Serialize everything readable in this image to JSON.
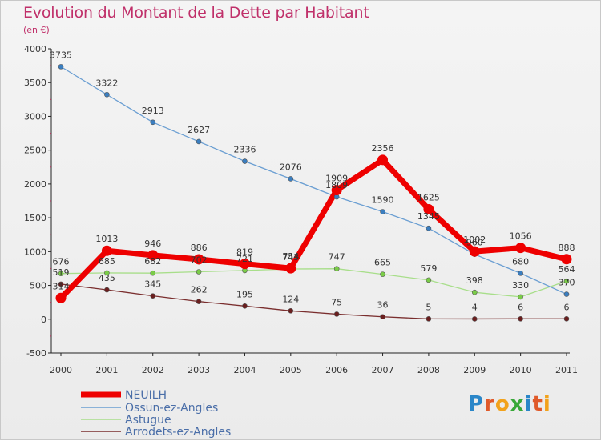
{
  "header": {
    "title": "Evolution du Montant de la Dette par Habitant",
    "unit": "(en €)"
  },
  "logo": {
    "text": "Proxiti",
    "letter_colors": [
      "#2a86c8",
      "#e05a2a",
      "#f2a21b",
      "#38a838",
      "#2a86c8",
      "#e05a2a",
      "#f2a21b"
    ]
  },
  "chart_data": {
    "type": "line",
    "title": "Evolution du Montant de la Dette par Habitant",
    "ylabel": "(en €)",
    "xlabel": "",
    "x": [
      "2000",
      "2001",
      "2002",
      "2003",
      "2004",
      "2005",
      "2006",
      "2007",
      "2008",
      "2009",
      "2010",
      "2011"
    ],
    "ylim": [
      -500,
      4000
    ],
    "yticks": [
      -500,
      0,
      500,
      1000,
      1500,
      2000,
      2500,
      3000,
      3500,
      4000
    ],
    "grid": false,
    "legend_position": "bottom-left",
    "series": [
      {
        "name": "NEUILH",
        "color": "#ee0000",
        "point_color": "#ee0000",
        "emphasis": true,
        "values": [
          314,
          1013,
          946,
          886,
          819,
          754,
          1909,
          2356,
          1625,
          1002,
          1056,
          888
        ]
      },
      {
        "name": "Ossun-ez-Angles",
        "color": "#6a9ed2",
        "point_color": "#3a7ec0",
        "values": [
          3735,
          3322,
          2913,
          2627,
          2336,
          2076,
          1809,
          1590,
          1345,
          960,
          680,
          370
        ]
      },
      {
        "name": "Astugue",
        "color": "#a8de8a",
        "point_color": "#7acc48",
        "values": [
          676,
          685,
          682,
          702,
          721,
          743,
          747,
          665,
          579,
          398,
          330,
          564
        ]
      },
      {
        "name": "Arrodets-ez-Angles",
        "color": "#7a2e2e",
        "point_color": "#6a1e1e",
        "values": [
          519,
          435,
          345,
          262,
          195,
          124,
          75,
          36,
          5,
          4,
          6,
          6
        ]
      }
    ]
  }
}
